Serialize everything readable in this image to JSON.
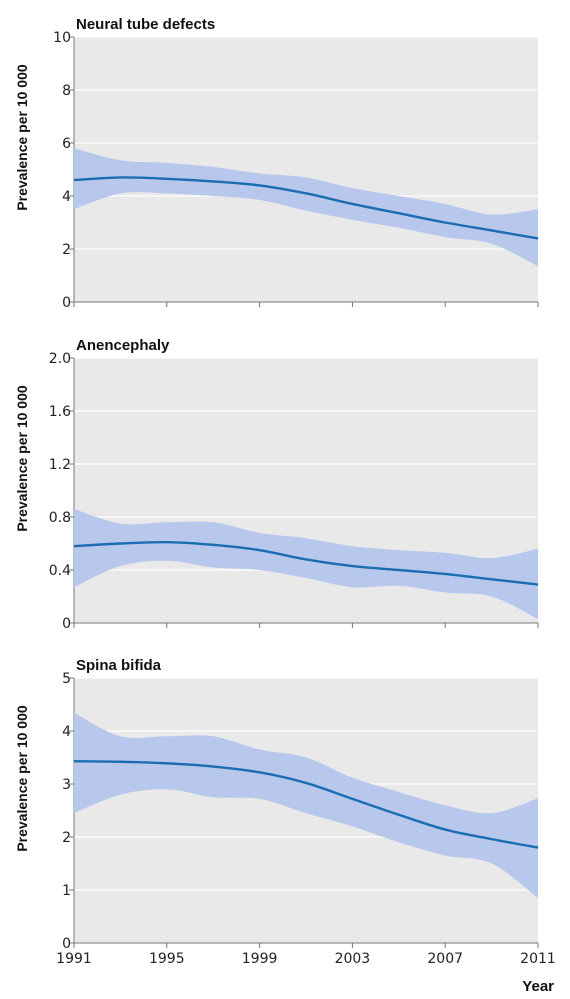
{
  "colors": {
    "plot_background": "#e9e9e9",
    "gridline": "#ffffff",
    "line": "#1a6db3",
    "band": "#b8c7ec",
    "axis": "#777777"
  },
  "chart_data": [
    {
      "type": "line",
      "title": "Neural tube defects",
      "ylabel": "Prevalence per 10 000",
      "xlabel": "",
      "xlim": [
        1991,
        2011
      ],
      "ylim": [
        0,
        10
      ],
      "yticks": [
        0,
        2,
        4,
        6,
        8,
        10
      ],
      "ytick_labels": [
        "0",
        "2",
        "4",
        "6",
        "8",
        "10"
      ],
      "grid": true,
      "x": [
        1991,
        1993,
        1995,
        1997,
        1999,
        2001,
        2003,
        2005,
        2007,
        2009,
        2011
      ],
      "series": [
        {
          "values": [
            4.6,
            4.7,
            4.65,
            4.55,
            4.4,
            4.1,
            3.7,
            3.35,
            3.0,
            2.7,
            2.4
          ],
          "lower": [
            3.5,
            4.1,
            4.1,
            4.0,
            3.85,
            3.45,
            3.1,
            2.8,
            2.45,
            2.2,
            1.35
          ],
          "upper": [
            5.8,
            5.35,
            5.25,
            5.1,
            4.85,
            4.7,
            4.3,
            4.0,
            3.7,
            3.3,
            3.5
          ]
        }
      ]
    },
    {
      "type": "line",
      "title": "Anencephaly",
      "ylabel": "Prevalence per 10 000",
      "xlabel": "",
      "xlim": [
        1991,
        2011
      ],
      "ylim": [
        0,
        2.0
      ],
      "yticks": [
        0,
        0.4,
        0.8,
        1.2,
        1.6,
        2.0
      ],
      "ytick_labels": [
        "0",
        "0.4",
        "0.8",
        "1.2",
        "1.6",
        "2.0"
      ],
      "grid": true,
      "x": [
        1991,
        1993,
        1995,
        1997,
        1999,
        2001,
        2003,
        2005,
        2007,
        2009,
        2011
      ],
      "series": [
        {
          "values": [
            0.58,
            0.6,
            0.61,
            0.59,
            0.55,
            0.48,
            0.43,
            0.4,
            0.37,
            0.33,
            0.29
          ],
          "lower": [
            0.27,
            0.43,
            0.47,
            0.42,
            0.4,
            0.34,
            0.27,
            0.28,
            0.23,
            0.2,
            0.03
          ],
          "upper": [
            0.86,
            0.75,
            0.76,
            0.76,
            0.68,
            0.64,
            0.58,
            0.55,
            0.53,
            0.49,
            0.56
          ]
        }
      ]
    },
    {
      "type": "line",
      "title": "Spina bifida",
      "ylabel": "Prevalence per 10 000",
      "xlabel": "Year",
      "xlim": [
        1991,
        2011
      ],
      "ylim": [
        0,
        5
      ],
      "yticks": [
        0,
        1,
        2,
        3,
        4,
        5
      ],
      "ytick_labels": [
        "0",
        "1",
        "2",
        "3",
        "4",
        "5"
      ],
      "xticks": [
        1991,
        1995,
        1999,
        2003,
        2007,
        2011
      ],
      "xtick_labels": [
        "1991",
        "1995",
        "1999",
        "2003",
        "2007",
        "2011"
      ],
      "grid": true,
      "x": [
        1991,
        1993,
        1995,
        1997,
        1999,
        2001,
        2003,
        2005,
        2007,
        2009,
        2011
      ],
      "series": [
        {
          "values": [
            3.43,
            3.42,
            3.39,
            3.33,
            3.22,
            3.02,
            2.72,
            2.42,
            2.14,
            1.96,
            1.8
          ],
          "lower": [
            2.45,
            2.8,
            2.9,
            2.75,
            2.72,
            2.45,
            2.2,
            1.9,
            1.65,
            1.5,
            0.85
          ],
          "upper": [
            4.35,
            3.9,
            3.9,
            3.9,
            3.65,
            3.5,
            3.12,
            2.85,
            2.6,
            2.45,
            2.73
          ]
        }
      ]
    }
  ]
}
